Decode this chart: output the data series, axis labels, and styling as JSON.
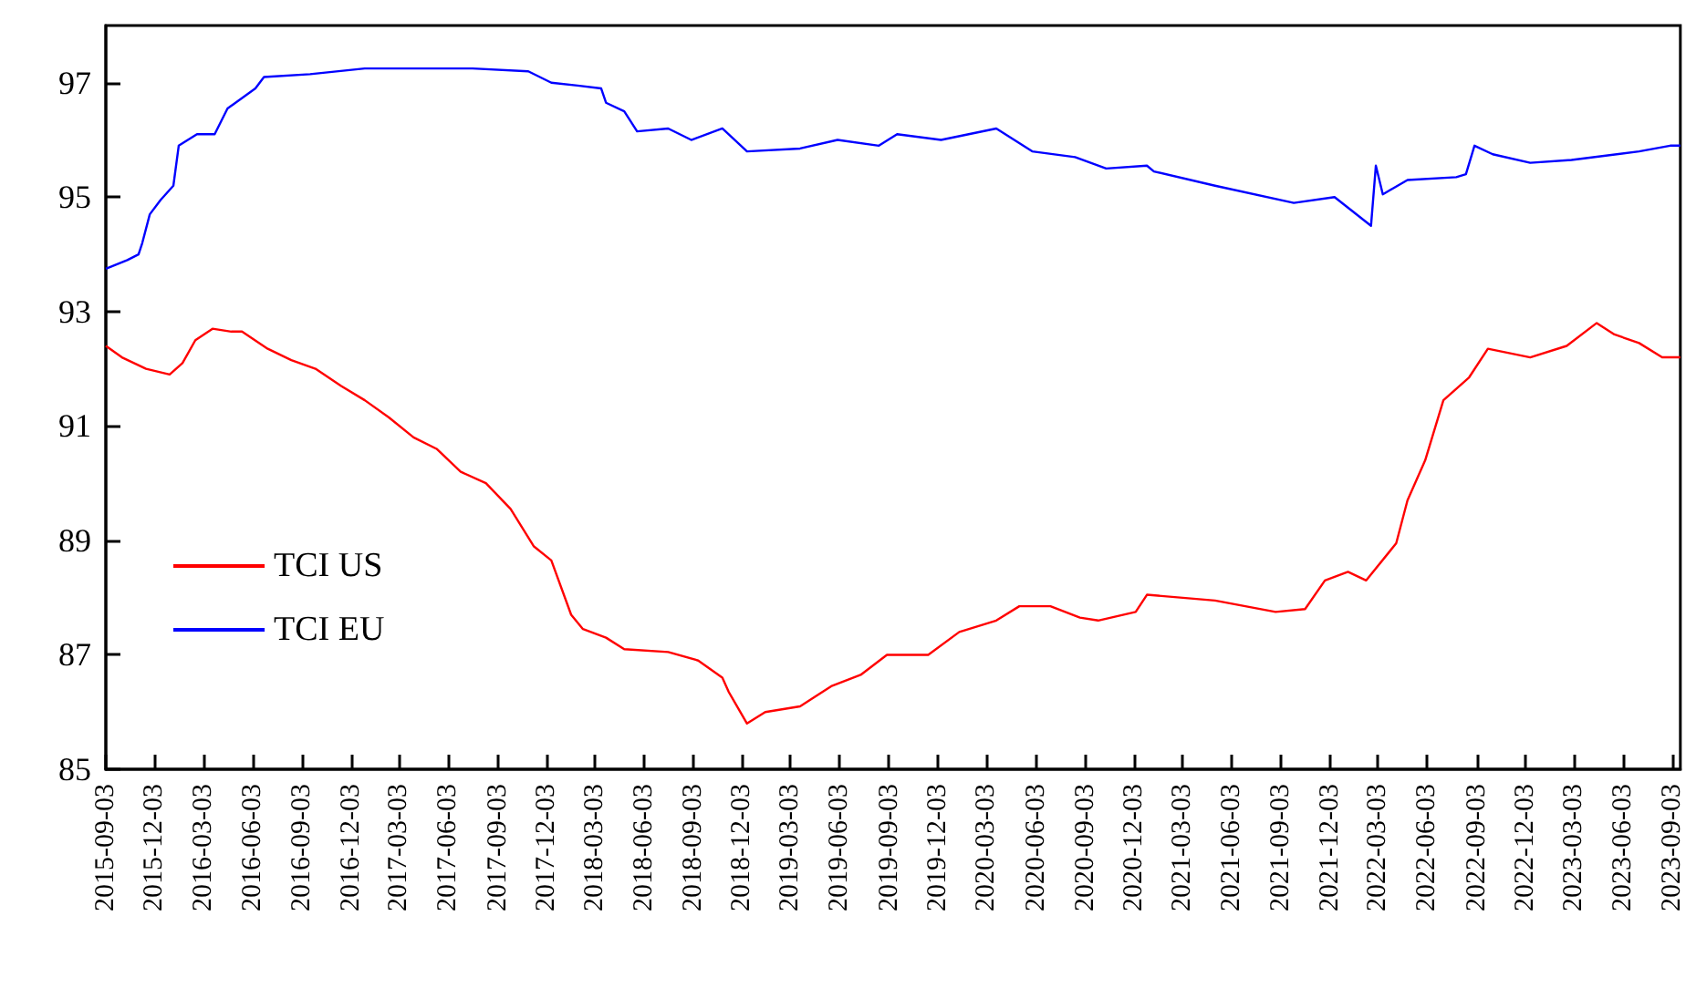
{
  "chart_data": {
    "type": "line",
    "xlim": [
      "2015-09-03",
      "2023-09-18"
    ],
    "xticks": [
      "2015-09-03",
      "2015-12-03",
      "2016-03-03",
      "2016-06-03",
      "2016-09-03",
      "2016-12-03",
      "2017-03-03",
      "2017-06-03",
      "2017-09-03",
      "2017-12-03",
      "2018-03-03",
      "2018-06-03",
      "2018-09-03",
      "2018-12-03",
      "2019-03-03",
      "2019-06-03",
      "2019-09-03",
      "2019-12-03",
      "2020-03-03",
      "2020-06-03",
      "2020-09-03",
      "2020-12-03",
      "2021-03-03",
      "2021-06-03",
      "2021-09-03",
      "2021-12-03",
      "2022-03-03",
      "2022-06-03",
      "2022-09-03",
      "2022-12-03",
      "2023-03-03",
      "2023-06-03",
      "2023-09-03"
    ],
    "ylim": [
      85,
      98
    ],
    "yticks": [
      85,
      87,
      89,
      91,
      93,
      95,
      97
    ],
    "grid": false,
    "legend": "bottom left",
    "line_style": "solid",
    "marker": "none",
    "series": [
      {
        "name": "TCI US",
        "color": "#ff0000",
        "x": [
          "2015-09-03",
          "2015-10-03",
          "2015-11-17",
          "2015-12-31",
          "2016-01-24",
          "2016-02-17",
          "2016-03-20",
          "2016-04-24",
          "2016-05-14",
          "2016-07-01",
          "2016-08-14",
          "2016-09-28",
          "2016-11-15",
          "2016-12-29",
          "2017-02-12",
          "2017-03-30",
          "2017-05-12",
          "2017-06-26",
          "2017-08-12",
          "2017-09-27",
          "2017-11-09",
          "2017-12-12",
          "2018-01-18",
          "2018-02-09",
          "2018-03-24",
          "2018-04-27",
          "2018-07-18",
          "2018-09-12",
          "2018-10-27",
          "2018-11-08",
          "2018-12-12",
          "2019-01-15",
          "2019-03-21",
          "2019-05-18",
          "2019-07-12",
          "2019-08-30",
          "2019-11-15",
          "2020-01-12",
          "2020-03-21",
          "2020-05-03",
          "2020-06-30",
          "2020-08-24",
          "2020-09-27",
          "2020-12-06",
          "2020-12-27",
          "2021-05-03",
          "2021-08-24",
          "2021-10-18",
          "2021-11-24",
          "2022-01-06",
          "2022-02-09",
          "2022-04-06",
          "2022-04-27",
          "2022-05-30",
          "2022-07-03",
          "2022-08-20",
          "2022-09-24",
          "2022-12-12",
          "2023-02-18",
          "2023-04-15",
          "2023-05-18",
          "2023-07-03",
          "2023-08-15",
          "2023-09-18"
        ],
        "values": [
          92.4,
          92.2,
          92.0,
          91.9,
          92.1,
          92.5,
          92.7,
          92.65,
          92.65,
          92.35,
          92.15,
          92.0,
          91.7,
          91.45,
          91.15,
          90.8,
          90.6,
          90.2,
          90.0,
          89.55,
          88.9,
          88.65,
          87.7,
          87.45,
          87.3,
          87.1,
          87.05,
          86.9,
          86.6,
          86.35,
          85.8,
          86.0,
          86.1,
          86.45,
          86.65,
          87.0,
          87.0,
          87.4,
          87.6,
          87.85,
          87.85,
          87.65,
          87.6,
          87.75,
          88.05,
          87.95,
          87.75,
          87.8,
          88.3,
          88.45,
          88.3,
          88.95,
          89.7,
          90.4,
          91.45,
          91.85,
          92.35,
          92.2,
          92.4,
          92.8,
          92.6,
          92.45,
          92.2,
          92.2
        ]
      },
      {
        "name": "TCI EU",
        "color": "#0000ff",
        "x": [
          "2015-09-03",
          "2015-10-13",
          "2015-11-03",
          "2015-11-10",
          "2015-11-24",
          "2015-12-14",
          "2016-01-07",
          "2016-01-17",
          "2016-02-20",
          "2016-03-24",
          "2016-04-17",
          "2016-06-08",
          "2016-06-24",
          "2016-09-18",
          "2016-12-29",
          "2017-07-18",
          "2017-10-30",
          "2017-12-12",
          "2018-01-30",
          "2018-03-15",
          "2018-03-24",
          "2018-04-27",
          "2018-05-21",
          "2018-07-18",
          "2018-08-30",
          "2018-10-27",
          "2018-12-12",
          "2019-03-21",
          "2019-05-30",
          "2019-08-15",
          "2019-09-18",
          "2019-12-09",
          "2020-03-21",
          "2020-05-27",
          "2020-08-15",
          "2020-10-12",
          "2020-12-27",
          "2021-01-09",
          "2021-05-03",
          "2021-09-27",
          "2021-12-12",
          "2022-02-18",
          "2022-02-27",
          "2022-03-12",
          "2022-04-27",
          "2022-07-27",
          "2022-08-14",
          "2022-08-30",
          "2022-10-03",
          "2022-12-12",
          "2023-02-27",
          "2023-07-03",
          "2023-08-30",
          "2023-09-18"
        ],
        "values": [
          93.75,
          93.9,
          94.0,
          94.2,
          94.7,
          94.95,
          95.2,
          95.9,
          96.1,
          96.1,
          96.55,
          96.9,
          97.1,
          97.15,
          97.25,
          97.25,
          97.2,
          97.0,
          96.95,
          96.9,
          96.65,
          96.5,
          96.15,
          96.2,
          96.0,
          96.2,
          95.8,
          95.85,
          96.0,
          95.9,
          96.1,
          96.0,
          96.2,
          95.8,
          95.7,
          95.5,
          95.55,
          95.45,
          95.2,
          94.9,
          95.0,
          94.5,
          95.55,
          95.05,
          95.3,
          95.35,
          95.4,
          95.9,
          95.75,
          95.6,
          95.65,
          95.8,
          95.9,
          95.9
        ]
      }
    ]
  }
}
